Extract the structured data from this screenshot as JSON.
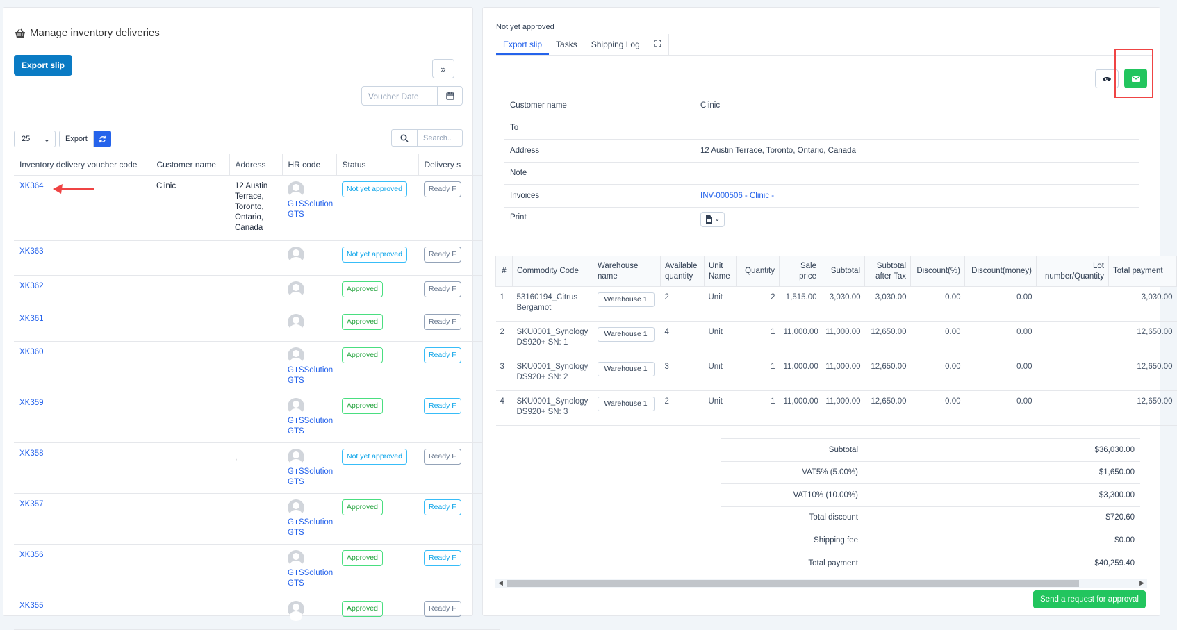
{
  "left": {
    "title": "Manage inventory deliveries",
    "export_slip_label": "Export slip",
    "collapse_icon": "»",
    "voucher_date_placeholder": "Voucher Date",
    "page_size": "25",
    "export_label": "Export",
    "search_placeholder": "Search..",
    "columns": [
      "Inventory delivery voucher code",
      "Customer name",
      "Address",
      "HR code",
      "Status",
      "Delivery s"
    ],
    "rows": [
      {
        "code": "XK364",
        "customer": "Clinic",
        "address": "12 Austin Terrace, Toronto, Ontario, Canada",
        "hr": "GTSSolution GTS",
        "status": "Not yet approved",
        "delivery": "Ready F"
      },
      {
        "code": "XK363",
        "customer": "",
        "address": "",
        "hr": "",
        "status": "Not yet approved",
        "delivery": "Ready F"
      },
      {
        "code": "XK362",
        "customer": "",
        "address": "",
        "hr": "",
        "status": "Approved",
        "delivery": "Ready F"
      },
      {
        "code": "XK361",
        "customer": "",
        "address": "",
        "hr": "",
        "status": "Approved",
        "delivery": "Ready F"
      },
      {
        "code": "XK360",
        "customer": "",
        "address": "",
        "hr": "GTSSolution GTS",
        "status": "Approved",
        "delivery": "Ready F"
      },
      {
        "code": "XK359",
        "customer": "",
        "address": "",
        "hr": "GTSSolution GTS",
        "status": "Approved",
        "delivery": "Ready F"
      },
      {
        "code": "XK358",
        "customer": "",
        "address": ",",
        "hr": "GTSSolution GTS",
        "status": "Not yet approved",
        "delivery": "Ready F"
      },
      {
        "code": "XK357",
        "customer": "",
        "address": "",
        "hr": "GTSSolution GTS",
        "status": "Approved",
        "delivery": "Ready F"
      },
      {
        "code": "XK356",
        "customer": "",
        "address": "",
        "hr": "GTSSolution GTS",
        "status": "Approved",
        "delivery": "Ready F"
      },
      {
        "code": "XK355",
        "customer": "",
        "address": "",
        "hr": "",
        "status": "Approved",
        "delivery": "Ready F"
      }
    ]
  },
  "right": {
    "status_text": "Not yet approved",
    "tabs": [
      "Export slip",
      "Tasks",
      "Shipping Log"
    ],
    "info": {
      "customer_label": "Customer name",
      "customer_value": "Clinic",
      "to_label": "To",
      "to_value": "",
      "address_label": "Address",
      "address_value": "12 Austin Terrace, Toronto, Ontario, Canada",
      "note_label": "Note",
      "note_value": "",
      "invoices_label": "Invoices",
      "invoices_value": "INV-000506 - Clinic -",
      "print_label": "Print"
    },
    "item_columns": [
      "#",
      "Commodity Code",
      "Warehouse name",
      "Available quantity",
      "Unit Name",
      "Quantity",
      "Sale price",
      "Subtotal",
      "Subtotal after Tax",
      "Discount(%)",
      "Discount(money)",
      "Lot number/Quantity",
      "Total payment"
    ],
    "items": [
      {
        "n": "1",
        "code": "53160194_Citrus Bergamot",
        "wh": "Warehouse 1",
        "avail": "2",
        "unit": "Unit",
        "qty": "2",
        "price": "1,515.00",
        "sub": "3,030.00",
        "subtax": "3,030.00",
        "dp": "0.00",
        "dm": "0.00",
        "lot": "",
        "total": "3,030.00"
      },
      {
        "n": "2",
        "code": "SKU0001_Synology DS920+ SN: 1",
        "wh": "Warehouse 1",
        "avail": "4",
        "unit": "Unit",
        "qty": "1",
        "price": "11,000.00",
        "sub": "11,000.00",
        "subtax": "12,650.00",
        "dp": "0.00",
        "dm": "0.00",
        "lot": "",
        "total": "12,650.00"
      },
      {
        "n": "3",
        "code": "SKU0001_Synology DS920+ SN: 2",
        "wh": "Warehouse 1",
        "avail": "3",
        "unit": "Unit",
        "qty": "1",
        "price": "11,000.00",
        "sub": "11,000.00",
        "subtax": "12,650.00",
        "dp": "0.00",
        "dm": "0.00",
        "lot": "",
        "total": "12,650.00"
      },
      {
        "n": "4",
        "code": "SKU0001_Synology DS920+ SN: 3",
        "wh": "Warehouse 1",
        "avail": "2",
        "unit": "Unit",
        "qty": "1",
        "price": "11,000.00",
        "sub": "11,000.00",
        "subtax": "12,650.00",
        "dp": "0.00",
        "dm": "0.00",
        "lot": "",
        "total": "12,650.00"
      }
    ],
    "totals": [
      {
        "label": "Subtotal",
        "value": "$36,030.00"
      },
      {
        "label": "VAT5% (5.00%)",
        "value": "$1,650.00"
      },
      {
        "label": "VAT10% (10.00%)",
        "value": "$3,300.00"
      },
      {
        "label": "Total discount",
        "value": "$720.60"
      },
      {
        "label": "Shipping fee",
        "value": "$0.00"
      },
      {
        "label": "Total payment",
        "value": "$40,259.40"
      }
    ],
    "send_label": "Send a request for approval"
  },
  "colors": {
    "primary": "#0a7bc4",
    "link": "#2563eb",
    "success": "#22c55e",
    "highlight": "#ef4444"
  }
}
